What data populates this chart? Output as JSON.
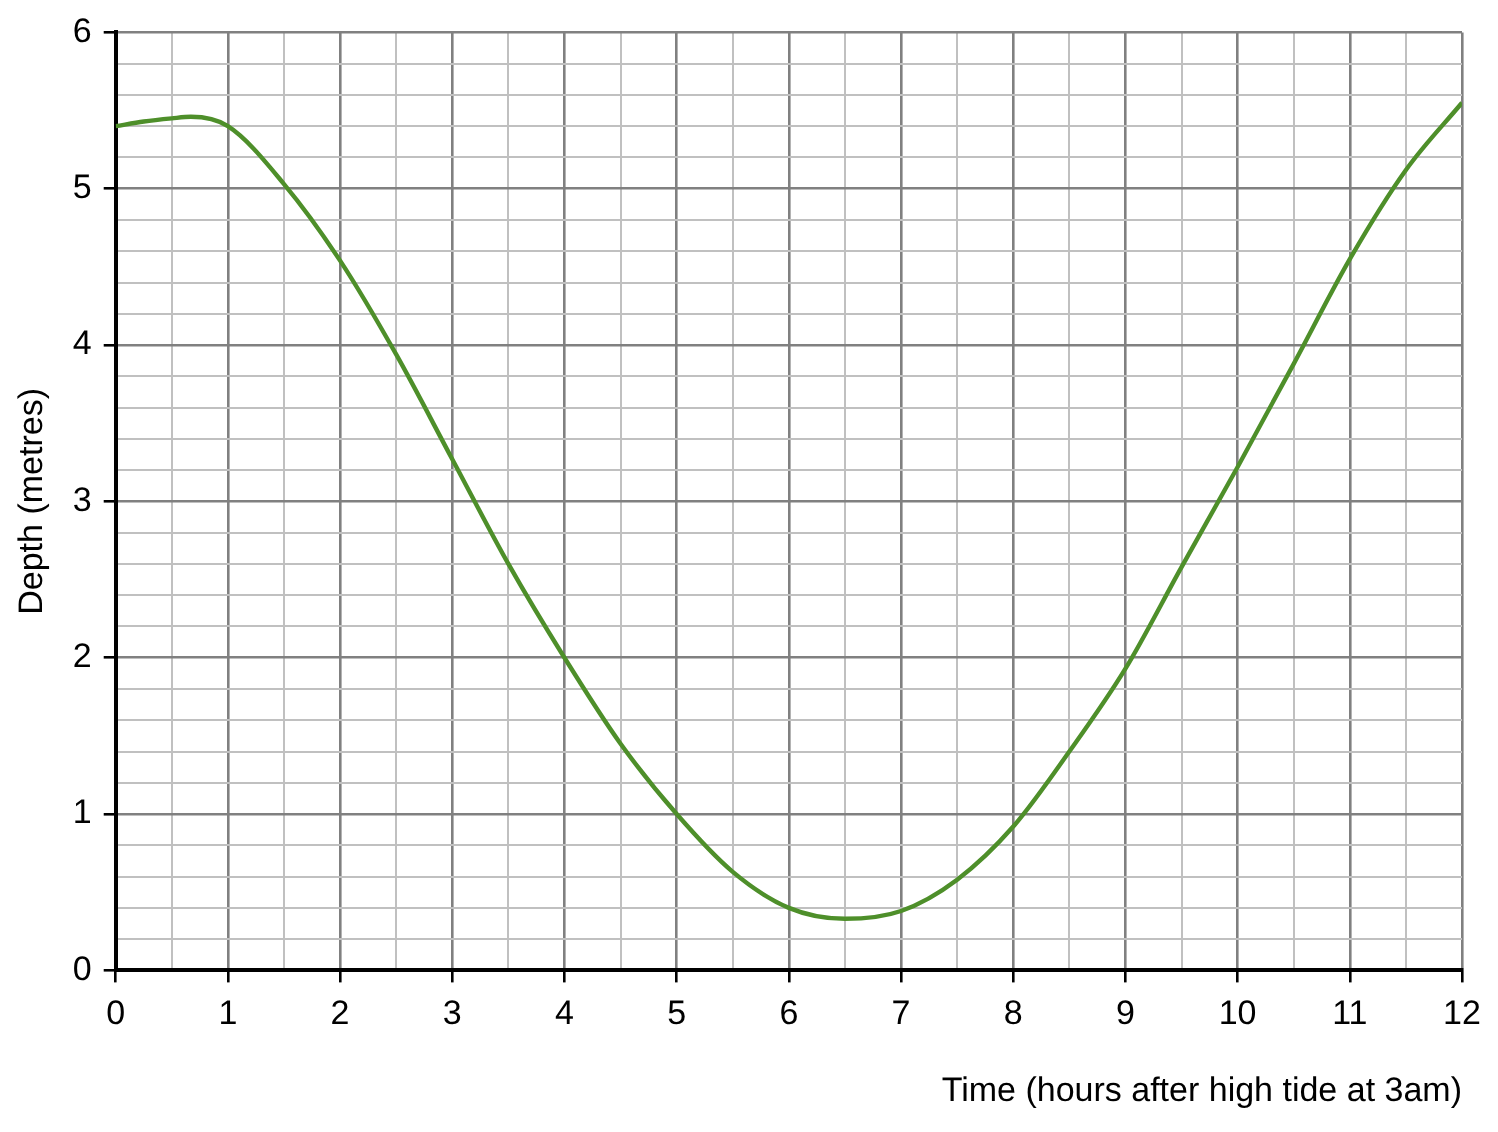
{
  "chart_data": {
    "type": "line",
    "xlabel": "Time (hours after high tide at 3am)",
    "ylabel": "Depth (metres)",
    "x": [
      0,
      0.25,
      0.5,
      0.67,
      1,
      1.5,
      2,
      2.5,
      3,
      3.5,
      4,
      4.5,
      5,
      5.5,
      6,
      6.5,
      7,
      7.5,
      8,
      8.5,
      9,
      9.5,
      10,
      10.5,
      11,
      11.5,
      12
    ],
    "series": [
      {
        "color": "#4e8f2a",
        "values": [
          5.4,
          5.43,
          5.45,
          5.46,
          5.4,
          5.03,
          4.54,
          3.94,
          3.27,
          2.6,
          2.0,
          1.45,
          1.0,
          0.63,
          0.4,
          0.33,
          0.38,
          0.58,
          0.92,
          1.4,
          1.93,
          2.58,
          3.22,
          3.88,
          4.55,
          5.12,
          5.55
        ]
      }
    ],
    "xlim": [
      0,
      12
    ],
    "ylim": [
      0,
      6
    ],
    "xticks": [
      0,
      {
        "value": 0.5,
        "label": null
      },
      1,
      {
        "value": 1.5,
        "label": null
      },
      2,
      {
        "value": 2.5,
        "label": null
      },
      3,
      {
        "value": 3.5,
        "label": null
      },
      4,
      {
        "value": 4.5,
        "label": null
      },
      5,
      {
        "value": 5.5,
        "label": null
      },
      6,
      {
        "value": 6.5,
        "label": null
      },
      7,
      {
        "value": 7.5,
        "label": null
      },
      8,
      {
        "value": 8.5,
        "label": null
      },
      9,
      {
        "value": 9.5,
        "label": null
      },
      10,
      {
        "value": 10.5,
        "label": null
      },
      11,
      {
        "value": 11.5,
        "label": null
      },
      12
    ],
    "yticks": [
      0,
      {
        "value": 0.2,
        "label": null
      },
      {
        "value": 0.4,
        "label": null
      },
      {
        "value": 0.6,
        "label": null
      },
      {
        "value": 0.8,
        "label": null
      },
      1,
      {
        "value": 1.2,
        "label": null
      },
      {
        "value": 1.4,
        "label": null
      },
      {
        "value": 1.6,
        "label": null
      },
      {
        "value": 1.8,
        "label": null
      },
      2,
      {
        "value": 2.2,
        "label": null
      },
      {
        "value": 2.4,
        "label": null
      },
      {
        "value": 2.6,
        "label": null
      },
      {
        "value": 2.8,
        "label": null
      },
      3,
      {
        "value": 3.2,
        "label": null
      },
      {
        "value": 3.4,
        "label": null
      },
      {
        "value": 3.6,
        "label": null
      },
      {
        "value": 3.8,
        "label": null
      },
      4,
      {
        "value": 4.2,
        "label": null
      },
      {
        "value": 4.4,
        "label": null
      },
      {
        "value": 4.6,
        "label": null
      },
      {
        "value": 4.8,
        "label": null
      },
      5,
      {
        "value": 5.2,
        "label": null
      },
      {
        "value": 5.4,
        "label": null
      },
      {
        "value": 5.6,
        "label": null
      },
      {
        "value": 5.8,
        "label": null
      },
      6
    ],
    "grid": true,
    "marker": "none",
    "line_style": "solid"
  }
}
